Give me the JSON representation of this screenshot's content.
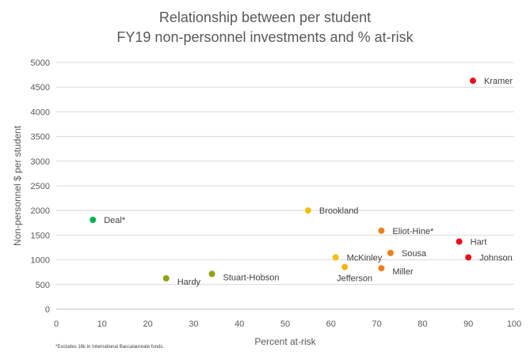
{
  "chart_data": {
    "type": "scatter",
    "title_line1": "Relationship between per student",
    "title_line2": "FY19 non-personnel investments and % at-risk",
    "xlabel": "Percent at-risk",
    "ylabel": "Non-personnel $ per student",
    "xlim": [
      0,
      100
    ],
    "ylim": [
      0,
      5000
    ],
    "x_ticks": [
      0,
      10,
      20,
      30,
      40,
      50,
      60,
      70,
      80,
      90,
      100
    ],
    "y_ticks": [
      0,
      500,
      1000,
      1500,
      2000,
      2500,
      3000,
      3500,
      4000,
      4500,
      5000
    ],
    "grid": "horizontal",
    "legend": "none",
    "points": [
      {
        "label": "Deal*",
        "x": 8,
        "y": 1810,
        "color": "#00b050",
        "label_pos": "right"
      },
      {
        "label": "Hardy",
        "x": 24,
        "y": 625,
        "color": "#92a10f",
        "label_pos": "right-below"
      },
      {
        "label": "Stuart-Hobson",
        "x": 34,
        "y": 715,
        "color": "#92a10f",
        "label_pos": "right-below"
      },
      {
        "label": "Brookland",
        "x": 55,
        "y": 2000,
        "color": "#f4c00f",
        "label_pos": "right"
      },
      {
        "label": "McKinley",
        "x": 61,
        "y": 1050,
        "color": "#f4c00f",
        "label_pos": "right"
      },
      {
        "label": "Jefferson",
        "x": 63,
        "y": 855,
        "color": "#f4b512",
        "label_pos": "below"
      },
      {
        "label": "Eliot-Hine*",
        "x": 71,
        "y": 1590,
        "color": "#f07f1b",
        "label_pos": "right"
      },
      {
        "label": "Sousa",
        "x": 73,
        "y": 1140,
        "color": "#f07f1b",
        "label_pos": "right"
      },
      {
        "label": "Miller",
        "x": 71,
        "y": 830,
        "color": "#f07f1b",
        "label_pos": "right-below"
      },
      {
        "label": "Hart",
        "x": 88,
        "y": 1370,
        "color": "#e8101b",
        "label_pos": "right"
      },
      {
        "label": "Johnson",
        "x": 90,
        "y": 1050,
        "color": "#e8101b",
        "label_pos": "right"
      },
      {
        "label": "Kramer",
        "x": 91,
        "y": 4630,
        "color": "#e8101b",
        "label_pos": "right"
      }
    ]
  },
  "footnote": "*Excludes 16k in International Baccalaureate funds."
}
